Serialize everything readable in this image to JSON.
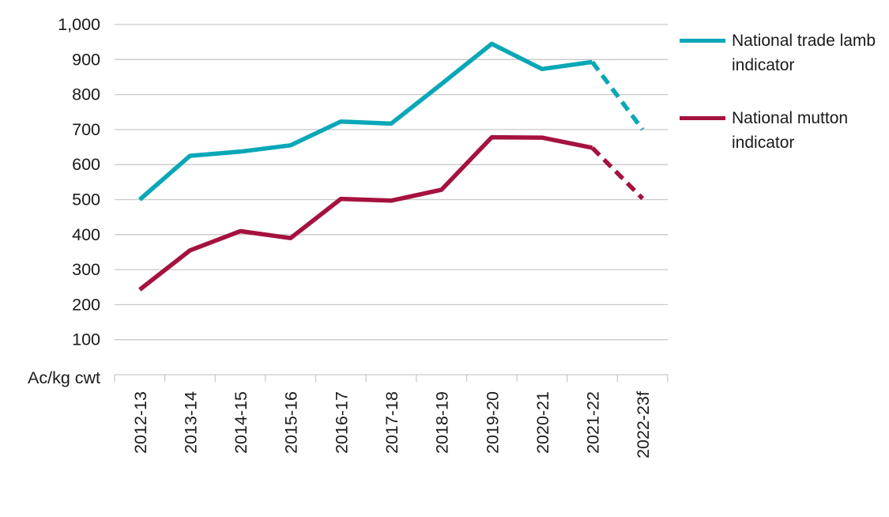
{
  "chart_data": {
    "type": "line",
    "title": "",
    "y_axis_unit_label": "Ac/kg cwt",
    "categories": [
      "2012-13",
      "2013-14",
      "2014-15",
      "2015-16",
      "2016-17",
      "2017-18",
      "2018-19",
      "2019-20",
      "2020-21",
      "2021-22",
      "2022-23f"
    ],
    "ylim": [
      0,
      1000
    ],
    "ytick_values": [
      100,
      200,
      300,
      400,
      500,
      600,
      700,
      800,
      900,
      1000
    ],
    "ytick_labels": [
      "100",
      "200",
      "300",
      "400",
      "500",
      "600",
      "700",
      "800",
      "900",
      "1,000"
    ],
    "grid": true,
    "legend_position": "right",
    "series": [
      {
        "name": "National trade lamb indicator",
        "color": "#09a7b7",
        "values": [
          500,
          625,
          637,
          655,
          723,
          717,
          830,
          945,
          873,
          893,
          700
        ],
        "forecast_from_index": 9,
        "forecast_style": "dashed"
      },
      {
        "name": "National mutton indicator",
        "color": "#a5123e",
        "values": [
          243,
          355,
          410,
          390,
          502,
          497,
          528,
          678,
          677,
          648,
          503
        ],
        "forecast_from_index": 9,
        "forecast_style": "dashed"
      }
    ],
    "colors": {
      "gridline": "#c9c9c9",
      "axis_text": "#1a1a1a"
    }
  }
}
